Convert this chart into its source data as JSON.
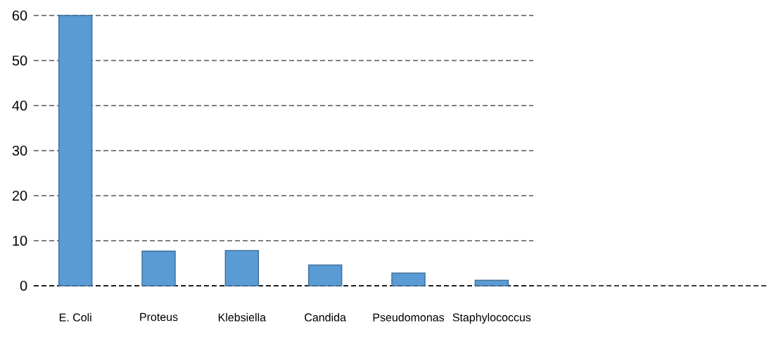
{
  "chart_data": {
    "type": "bar",
    "categories": [
      "E. Coli",
      "Proteus",
      "Klebsiella",
      "Candida",
      "Pseudomonas",
      "Staphylococcus"
    ],
    "values": [
      60,
      7.7,
      7.8,
      4.6,
      2.8,
      1.2
    ],
    "color": "#5b9bd5",
    "ylim": [
      0,
      60
    ],
    "yticks": [
      0,
      10,
      20,
      30,
      40,
      50,
      60
    ],
    "grid": "y",
    "line_style": "dashed"
  }
}
